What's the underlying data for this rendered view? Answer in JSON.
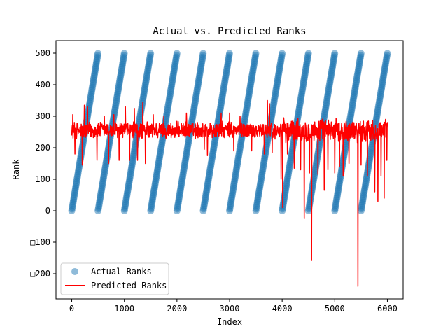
{
  "chart_data": {
    "type": "scatter",
    "title": "Actual vs. Predicted Ranks",
    "xlabel": "Index",
    "ylabel": "Rank",
    "xlim": [
      -300,
      6300
    ],
    "ylim": [
      -280,
      540
    ],
    "x_ticks": [
      0,
      1000,
      2000,
      3000,
      4000,
      5000,
      6000
    ],
    "x_tick_labels": [
      "0",
      "1000",
      "2000",
      "3000",
      "4000",
      "5000",
      "6000"
    ],
    "y_ticks": [
      -200,
      -100,
      0,
      100,
      200,
      300,
      400,
      500
    ],
    "y_tick_labels": [
      "□200",
      "□100",
      "0",
      "100",
      "200",
      "300",
      "400",
      "500"
    ],
    "grid": false,
    "legend_position": "lower-left",
    "series": [
      {
        "name": "Actual Ranks",
        "kind": "scatter",
        "color": "#1f77b4",
        "alpha": 0.5,
        "segments": [
          {
            "x_start": 0,
            "x_end": 499,
            "y_start": 0,
            "y_end": 499
          },
          {
            "x_start": 500,
            "x_end": 999,
            "y_start": 0,
            "y_end": 499
          },
          {
            "x_start": 1000,
            "x_end": 1499,
            "y_start": 0,
            "y_end": 499
          },
          {
            "x_start": 1500,
            "x_end": 1999,
            "y_start": 0,
            "y_end": 499
          },
          {
            "x_start": 2000,
            "x_end": 2499,
            "y_start": 0,
            "y_end": 499
          },
          {
            "x_start": 2500,
            "x_end": 2999,
            "y_start": 0,
            "y_end": 499
          },
          {
            "x_start": 3000,
            "x_end": 3499,
            "y_start": 0,
            "y_end": 499
          },
          {
            "x_start": 3500,
            "x_end": 3999,
            "y_start": 0,
            "y_end": 499
          },
          {
            "x_start": 4000,
            "x_end": 4499,
            "y_start": 0,
            "y_end": 499
          },
          {
            "x_start": 4500,
            "x_end": 4999,
            "y_start": 0,
            "y_end": 499
          },
          {
            "x_start": 5000,
            "x_end": 5499,
            "y_start": 0,
            "y_end": 499
          },
          {
            "x_start": 5500,
            "x_end": 5999,
            "y_start": 0,
            "y_end": 499
          }
        ]
      },
      {
        "name": "Predicted Ranks",
        "kind": "line",
        "color": "#ff0000",
        "x_range": [
          0,
          6000
        ],
        "baseline": 255,
        "typical_spread": [
          225,
          285
        ],
        "spikes": [
          {
            "x": 20,
            "y": 305
          },
          {
            "x": 60,
            "y": 180
          },
          {
            "x": 200,
            "y": 145
          },
          {
            "x": 240,
            "y": 335
          },
          {
            "x": 300,
            "y": 330
          },
          {
            "x": 480,
            "y": 160
          },
          {
            "x": 620,
            "y": 300
          },
          {
            "x": 700,
            "y": 150
          },
          {
            "x": 800,
            "y": 305
          },
          {
            "x": 900,
            "y": 160
          },
          {
            "x": 1020,
            "y": 330
          },
          {
            "x": 1100,
            "y": 160
          },
          {
            "x": 1190,
            "y": 325
          },
          {
            "x": 1250,
            "y": 160
          },
          {
            "x": 1350,
            "y": 345
          },
          {
            "x": 1400,
            "y": 150
          },
          {
            "x": 1550,
            "y": 305
          },
          {
            "x": 1750,
            "y": 300
          },
          {
            "x": 2180,
            "y": 310
          },
          {
            "x": 2520,
            "y": 195
          },
          {
            "x": 2580,
            "y": 175
          },
          {
            "x": 2840,
            "y": 310
          },
          {
            "x": 3000,
            "y": 310
          },
          {
            "x": 3080,
            "y": 190
          },
          {
            "x": 3200,
            "y": 300
          },
          {
            "x": 3420,
            "y": 190
          },
          {
            "x": 3660,
            "y": 180
          },
          {
            "x": 3720,
            "y": 350
          },
          {
            "x": 3760,
            "y": 340
          },
          {
            "x": 3810,
            "y": 185
          },
          {
            "x": 3980,
            "y": 100
          },
          {
            "x": 4010,
            "y": 10
          },
          {
            "x": 4040,
            "y": 280
          },
          {
            "x": 4100,
            "y": 180
          },
          {
            "x": 4230,
            "y": 135
          },
          {
            "x": 4350,
            "y": 130
          },
          {
            "x": 4420,
            "y": -25
          },
          {
            "x": 4520,
            "y": 120
          },
          {
            "x": 4560,
            "y": -158
          },
          {
            "x": 4680,
            "y": 115
          },
          {
            "x": 4800,
            "y": 65
          },
          {
            "x": 4870,
            "y": 130
          },
          {
            "x": 5000,
            "y": 120
          },
          {
            "x": 5090,
            "y": 140
          },
          {
            "x": 5160,
            "y": 110
          },
          {
            "x": 5270,
            "y": 150
          },
          {
            "x": 5320,
            "y": 275
          },
          {
            "x": 5440,
            "y": -240
          },
          {
            "x": 5500,
            "y": 145
          },
          {
            "x": 5620,
            "y": 110
          },
          {
            "x": 5760,
            "y": 60
          },
          {
            "x": 5820,
            "y": 30
          },
          {
            "x": 5880,
            "y": 110
          },
          {
            "x": 5940,
            "y": 40
          },
          {
            "x": 5990,
            "y": 160
          }
        ]
      }
    ]
  }
}
